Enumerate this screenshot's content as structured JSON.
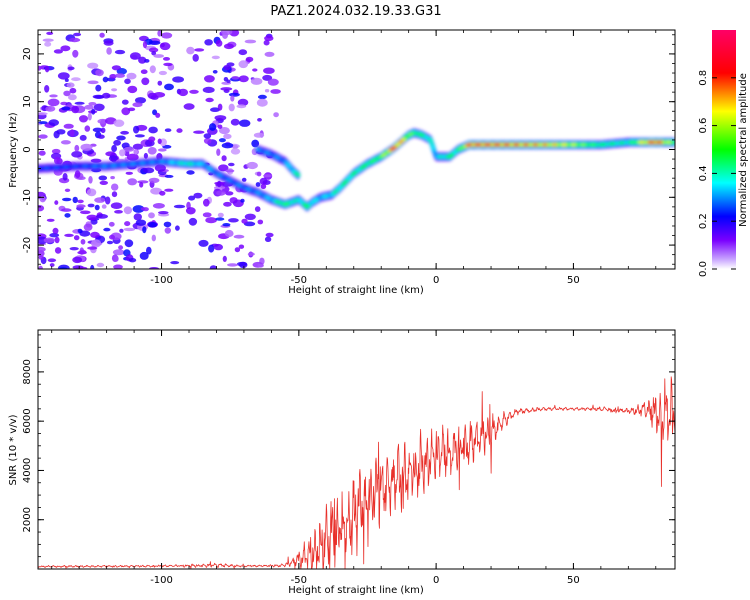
{
  "figure": {
    "title": "PAZ1.2024.032.19.33.G31"
  },
  "chart_data": [
    {
      "type": "heatmap",
      "xlabel": "Height of straight line (km)",
      "ylabel": "Frequency (Hz)",
      "xlim": [
        -145,
        87
      ],
      "ylim": [
        -25,
        25
      ],
      "x_ticks": [
        -100,
        -50,
        0,
        50
      ],
      "y_ticks": [
        -20,
        -10,
        0,
        10,
        20
      ],
      "colorbar": {
        "label": "Normalized spectral amplitude",
        "range": [
          0,
          1
        ],
        "ticks": [
          0.0,
          0.2,
          0.4,
          0.6,
          0.8
        ],
        "colormap": [
          "#ffffff",
          "#7a00ff",
          "#0000ff",
          "#00ffff",
          "#00ff00",
          "#ffff00",
          "#ff0000",
          "#ff00aa"
        ]
      },
      "ridge": {
        "x": [
          -145,
          -130,
          -120,
          -110,
          -100,
          -90,
          -85,
          -80,
          -75,
          -70,
          -65,
          -60,
          -55,
          -50,
          -47,
          -45,
          -42,
          -38,
          -35,
          -30,
          -25,
          -20,
          -15,
          -10,
          -8,
          -5,
          -2,
          0,
          5,
          8,
          12,
          20,
          30,
          40,
          50,
          60,
          70,
          80,
          87
        ],
        "y": [
          -4,
          -3.5,
          -3.5,
          -3,
          -2.5,
          -3,
          -3,
          -5,
          -6.5,
          -8,
          -9,
          -10.5,
          -11.5,
          -10.5,
          -12,
          -11,
          -10,
          -9.5,
          -8,
          -5,
          -3,
          -1.5,
          0.5,
          3,
          3.5,
          3,
          2,
          -1.5,
          -1.5,
          0,
          1,
          1,
          1,
          1,
          1,
          1,
          1.5,
          1.5,
          1.5
        ],
        "amplitude": [
          0.25,
          0.25,
          0.3,
          0.3,
          0.3,
          0.45,
          0.35,
          0.3,
          0.28,
          0.3,
          0.3,
          0.35,
          0.55,
          0.4,
          0.5,
          0.4,
          0.35,
          0.4,
          0.45,
          0.45,
          0.5,
          0.55,
          0.85,
          0.6,
          0.55,
          0.5,
          0.4,
          0.35,
          0.5,
          0.45,
          0.85,
          0.85,
          0.8,
          0.75,
          0.65,
          0.5,
          0.45,
          0.9,
          0.55
        ]
      },
      "branch": {
        "x": [
          -65,
          -60,
          -55,
          -52,
          -50
        ],
        "y": [
          0,
          -1,
          -2.5,
          -4.5,
          -5.5
        ],
        "amplitude": [
          0.3,
          0.3,
          0.3,
          0.4,
          0.45
        ]
      },
      "noise_region_x": [
        -145,
        -58
      ]
    },
    {
      "type": "line",
      "xlabel": "Height of straight line (km)",
      "ylabel": "SNR (10 * v/v)",
      "xlim": [
        -145,
        87
      ],
      "ylim": [
        0,
        9700
      ],
      "x_ticks": [
        -100,
        -50,
        0,
        50
      ],
      "y_ticks": [
        2000,
        4000,
        6000,
        8000
      ],
      "line_color": "#e8302a",
      "envelope": {
        "x": [
          -145,
          -100,
          -80,
          -70,
          -60,
          -55,
          -50,
          -45,
          -40,
          -35,
          -30,
          -25,
          -20,
          -10,
          0,
          10,
          20,
          25,
          30,
          40,
          50,
          60,
          70,
          75,
          80,
          84,
          87
        ],
        "base": [
          100,
          120,
          150,
          120,
          130,
          150,
          400,
          700,
          1000,
          1600,
          2200,
          2800,
          3300,
          3900,
          4600,
          5000,
          5600,
          6100,
          6400,
          6500,
          6500,
          6500,
          6400,
          6450,
          6400,
          6300,
          6200
        ],
        "spread": [
          40,
          40,
          80,
          40,
          40,
          80,
          300,
          900,
          1500,
          1600,
          1600,
          1600,
          1500,
          1300,
          1200,
          1000,
          800,
          300,
          120,
          80,
          60,
          80,
          100,
          250,
          800,
          1800,
          1000
        ]
      }
    }
  ]
}
